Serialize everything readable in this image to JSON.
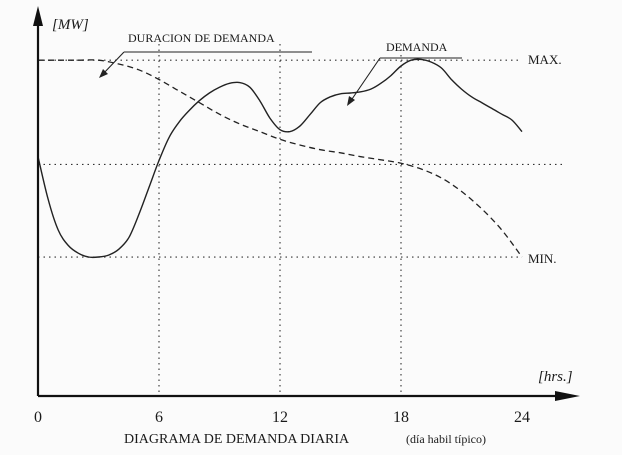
{
  "chart_data": {
    "type": "line",
    "title": "DIAGRAMA DE DEMANDA DIARIA",
    "subtitle": "(día habil típico)",
    "ylabel": "[MW]",
    "xlabel": "[hrs.]",
    "x_ticks": [
      "0",
      "6",
      "12",
      "18",
      "24"
    ],
    "xlim": [
      0,
      24
    ],
    "ylim": [
      0,
      100
    ],
    "grid": true,
    "reference_lines": [
      {
        "label": "MAX.",
        "y": 87
      },
      {
        "label": "MIN.",
        "y": 36
      }
    ],
    "mid_reference": {
      "y": 60
    },
    "series": [
      {
        "name": "DEMANDA",
        "style": "solid",
        "x": [
          0,
          0.5,
          1,
          1.5,
          2,
          2.5,
          3,
          3.5,
          4,
          4.5,
          5,
          5.5,
          6,
          6.5,
          7,
          7.5,
          8,
          8.5,
          9,
          9.5,
          10,
          10.5,
          11,
          11.5,
          12,
          12.5,
          13,
          13.5,
          14,
          14.5,
          15,
          15.5,
          16,
          16.5,
          17,
          17.5,
          18,
          18.5,
          19,
          19.5,
          20,
          20.5,
          21,
          21.5,
          22,
          22.5,
          23,
          23.5,
          24
        ],
        "values": [
          62,
          51,
          43,
          39,
          37,
          36,
          36,
          36.5,
          38,
          41,
          47,
          54,
          61,
          67,
          71,
          74,
          76.5,
          78.5,
          80,
          81,
          81.2,
          80,
          76.5,
          72,
          69,
          68.5,
          70,
          73,
          76,
          77.5,
          78.3,
          78.5,
          78.8,
          79.5,
          81,
          83,
          85.5,
          87,
          87.2,
          86.5,
          85,
          82,
          79.5,
          77.5,
          76,
          74.5,
          73,
          71.5,
          68.5
        ]
      },
      {
        "name": "DURACION DE DEMANDA",
        "style": "dashed",
        "x": [
          0,
          1,
          2,
          3,
          4,
          5,
          6,
          7,
          8,
          9,
          10,
          11,
          12,
          13,
          14,
          15,
          16,
          17,
          18,
          19,
          20,
          21,
          22,
          23,
          24
        ],
        "values": [
          87,
          87,
          87,
          87,
          86,
          84.5,
          82,
          79,
          76,
          73,
          70.5,
          68.5,
          66.5,
          65,
          63.8,
          63,
          62,
          61.2,
          60.3,
          58.8,
          56.5,
          53,
          48.5,
          43,
          36
        ]
      }
    ]
  }
}
